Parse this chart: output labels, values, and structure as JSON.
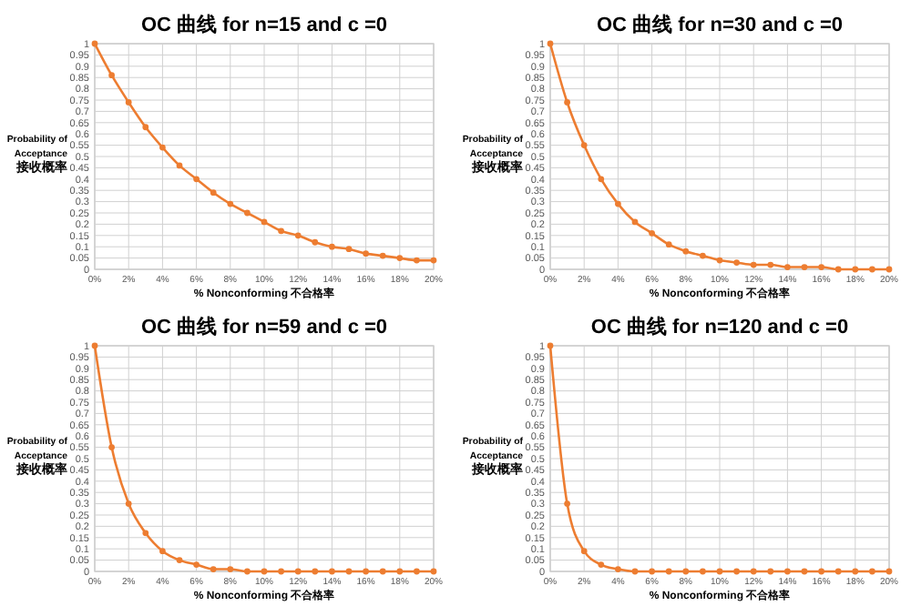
{
  "chart_data": [
    {
      "type": "line",
      "title": "OC 曲线 for n=15 and c =0",
      "xlabel": "% Nonconforming 不合格率",
      "ylabel": "Probability of\nAcceptance\n接收概率",
      "x": [
        0,
        1,
        2,
        3,
        4,
        5,
        6,
        7,
        8,
        9,
        10,
        11,
        12,
        13,
        14,
        15,
        16,
        17,
        18,
        19,
        20
      ],
      "series": [
        {
          "color": "#ed7d31",
          "values": [
            1,
            0.86,
            0.74,
            0.63,
            0.54,
            0.46,
            0.4,
            0.34,
            0.29,
            0.25,
            0.21,
            0.17,
            0.15,
            0.12,
            0.1,
            0.09,
            0.07,
            0.06,
            0.05,
            0.04,
            0.04
          ]
        }
      ],
      "xlim": [
        0,
        20
      ],
      "xticks": [
        {
          "value": 0,
          "label": "0%"
        },
        {
          "value": 2,
          "label": "2%"
        },
        {
          "value": 4,
          "label": "4%"
        },
        {
          "value": 6,
          "label": "6%"
        },
        {
          "value": 8,
          "label": "8%"
        },
        {
          "value": 10,
          "label": "10%"
        },
        {
          "value": 12,
          "label": "12%"
        },
        {
          "value": 14,
          "label": "14%"
        },
        {
          "value": 16,
          "label": "16%"
        },
        {
          "value": 18,
          "label": "18%"
        },
        {
          "value": 20,
          "label": "20%"
        }
      ],
      "ylim": [
        0,
        1
      ],
      "yticks": [
        0,
        0.05,
        0.1,
        0.15,
        0.2,
        0.25,
        0.3,
        0.35,
        0.4,
        0.45,
        0.5,
        0.55,
        0.6,
        0.65,
        0.7,
        0.75,
        0.8,
        0.85,
        0.9,
        0.95,
        1
      ],
      "grid": true,
      "marker": "circle"
    },
    {
      "type": "line",
      "title": "OC 曲线 for n=30 and c =0",
      "xlabel": "% Nonconforming 不合格率",
      "ylabel": "Probability of\nAcceptance\n接收概率",
      "x": [
        0,
        1,
        2,
        3,
        4,
        5,
        6,
        7,
        8,
        9,
        10,
        11,
        12,
        13,
        14,
        15,
        16,
        17,
        18,
        19,
        20
      ],
      "series": [
        {
          "color": "#ed7d31",
          "values": [
            1,
            0.74,
            0.55,
            0.4,
            0.29,
            0.21,
            0.16,
            0.11,
            0.08,
            0.06,
            0.04,
            0.03,
            0.02,
            0.02,
            0.01,
            0.01,
            0.01,
            0,
            0,
            0,
            0
          ]
        }
      ],
      "xlim": [
        0,
        20
      ],
      "xticks": [
        {
          "value": 0,
          "label": "0%"
        },
        {
          "value": 2,
          "label": "2%"
        },
        {
          "value": 4,
          "label": "4%"
        },
        {
          "value": 6,
          "label": "6%"
        },
        {
          "value": 8,
          "label": "8%"
        },
        {
          "value": 10,
          "label": "10%"
        },
        {
          "value": 12,
          "label": "12%"
        },
        {
          "value": 14,
          "label": "14%"
        },
        {
          "value": 16,
          "label": "16%"
        },
        {
          "value": 18,
          "label": "18%"
        },
        {
          "value": 20,
          "label": "20%"
        }
      ],
      "ylim": [
        0,
        1
      ],
      "yticks": [
        0,
        0.05,
        0.1,
        0.15,
        0.2,
        0.25,
        0.3,
        0.35,
        0.4,
        0.45,
        0.5,
        0.55,
        0.6,
        0.65,
        0.7,
        0.75,
        0.8,
        0.85,
        0.9,
        0.95,
        1
      ],
      "grid": true,
      "marker": "circle"
    },
    {
      "type": "line",
      "title": "OC 曲线 for n=59 and c =0",
      "xlabel": "% Nonconforming 不合格率",
      "ylabel": "Probability of\nAcceptance\n接收概率",
      "x": [
        0,
        1,
        2,
        3,
        4,
        5,
        6,
        7,
        8,
        9,
        10,
        11,
        12,
        13,
        14,
        15,
        16,
        17,
        18,
        19,
        20
      ],
      "series": [
        {
          "color": "#ed7d31",
          "values": [
            1,
            0.55,
            0.3,
            0.17,
            0.09,
            0.05,
            0.03,
            0.01,
            0.01,
            0,
            0,
            0,
            0,
            0,
            0,
            0,
            0,
            0,
            0,
            0,
            0
          ]
        }
      ],
      "xlim": [
        0,
        20
      ],
      "xticks": [
        {
          "value": 0,
          "label": "0%"
        },
        {
          "value": 2,
          "label": "2%"
        },
        {
          "value": 4,
          "label": "4%"
        },
        {
          "value": 6,
          "label": "6%"
        },
        {
          "value": 8,
          "label": "8%"
        },
        {
          "value": 10,
          "label": "10%"
        },
        {
          "value": 12,
          "label": "12%"
        },
        {
          "value": 14,
          "label": "14%"
        },
        {
          "value": 16,
          "label": "16%"
        },
        {
          "value": 18,
          "label": "18%"
        },
        {
          "value": 20,
          "label": "20%"
        }
      ],
      "ylim": [
        0,
        1
      ],
      "yticks": [
        0,
        0.05,
        0.1,
        0.15,
        0.2,
        0.25,
        0.3,
        0.35,
        0.4,
        0.45,
        0.5,
        0.55,
        0.6,
        0.65,
        0.7,
        0.75,
        0.8,
        0.85,
        0.9,
        0.95,
        1
      ],
      "grid": true,
      "marker": "circle"
    },
    {
      "type": "line",
      "title": "OC 曲线 for n=120 and c =0",
      "xlabel": "% Nonconforming 不合格率",
      "ylabel": "Probability of\nAcceptance\n接收概率",
      "x": [
        0,
        1,
        2,
        3,
        4,
        5,
        6,
        7,
        8,
        9,
        10,
        11,
        12,
        13,
        14,
        15,
        16,
        17,
        18,
        19,
        20
      ],
      "series": [
        {
          "color": "#ed7d31",
          "values": [
            1,
            0.3,
            0.09,
            0.03,
            0.01,
            0,
            0,
            0,
            0,
            0,
            0,
            0,
            0,
            0,
            0,
            0,
            0,
            0,
            0,
            0,
            0
          ]
        }
      ],
      "xlim": [
        0,
        20
      ],
      "xticks": [
        {
          "value": 0,
          "label": "0%"
        },
        {
          "value": 2,
          "label": "2%"
        },
        {
          "value": 4,
          "label": "4%"
        },
        {
          "value": 6,
          "label": "6%"
        },
        {
          "value": 8,
          "label": "8%"
        },
        {
          "value": 10,
          "label": "10%"
        },
        {
          "value": 12,
          "label": "12%"
        },
        {
          "value": 14,
          "label": "14%"
        },
        {
          "value": 16,
          "label": "16%"
        },
        {
          "value": 18,
          "label": "18%"
        },
        {
          "value": 20,
          "label": "20%"
        }
      ],
      "ylim": [
        0,
        1
      ],
      "yticks": [
        0,
        0.05,
        0.1,
        0.15,
        0.2,
        0.25,
        0.3,
        0.35,
        0.4,
        0.45,
        0.5,
        0.55,
        0.6,
        0.65,
        0.7,
        0.75,
        0.8,
        0.85,
        0.9,
        0.95,
        1
      ],
      "grid": true,
      "marker": "circle"
    }
  ]
}
